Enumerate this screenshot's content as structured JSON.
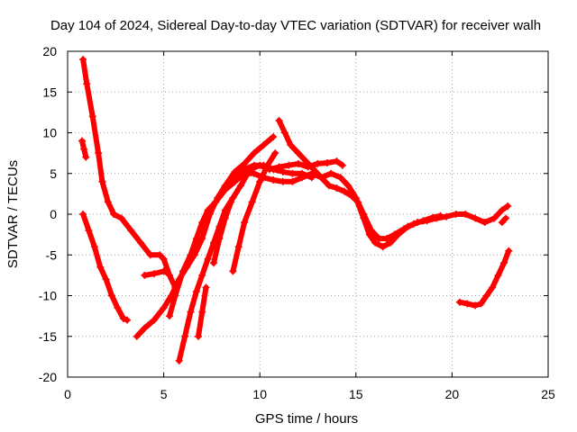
{
  "chart_data": {
    "type": "scatter",
    "title": "Day 104 of 2024, Sidereal Day-to-day VTEC variation (SDTVAR) for receiver walh",
    "xlabel": "GPS time / hours",
    "ylabel": "SDTVAR / TECUs",
    "xlim": [
      0,
      25
    ],
    "ylim": [
      -20,
      20
    ],
    "xticks": [
      0,
      5,
      10,
      15,
      20,
      25
    ],
    "yticks": [
      -20,
      -15,
      -10,
      -5,
      0,
      5,
      10,
      15,
      20
    ],
    "grid": true,
    "marker": "+",
    "color": "#ff0000",
    "series": [
      {
        "name": "s1",
        "points": [
          [
            0.8,
            19
          ],
          [
            1.0,
            16
          ],
          [
            1.3,
            12
          ],
          [
            1.6,
            7.5
          ],
          [
            1.8,
            4
          ],
          [
            2.1,
            1.5
          ],
          [
            2.4,
            0
          ],
          [
            2.8,
            -0.5
          ],
          [
            3.3,
            -2
          ],
          [
            3.8,
            -3.5
          ],
          [
            4.3,
            -5
          ],
          [
            4.8,
            -5
          ],
          [
            5.0,
            -5.5
          ],
          [
            5.3,
            -7.5
          ],
          [
            5.6,
            -9
          ]
        ]
      },
      {
        "name": "s2",
        "points": [
          [
            0.75,
            9
          ],
          [
            0.85,
            8
          ],
          [
            0.95,
            7
          ]
        ]
      },
      {
        "name": "s3",
        "points": [
          [
            0.8,
            0
          ],
          [
            1.1,
            -2
          ],
          [
            1.4,
            -4
          ],
          [
            1.7,
            -6.5
          ],
          [
            2.0,
            -8
          ],
          [
            2.3,
            -10
          ],
          [
            2.6,
            -11.5
          ],
          [
            2.9,
            -12.8
          ],
          [
            3.1,
            -13
          ]
        ]
      },
      {
        "name": "s4",
        "points": [
          [
            3.6,
            -15
          ],
          [
            4.0,
            -14
          ],
          [
            4.5,
            -13
          ],
          [
            5.0,
            -11.5
          ],
          [
            5.4,
            -10
          ],
          [
            5.8,
            -8
          ],
          [
            6.2,
            -6.5
          ],
          [
            6.6,
            -5
          ],
          [
            7.0,
            -3
          ],
          [
            7.4,
            0
          ],
          [
            7.8,
            2
          ],
          [
            8.2,
            3.5
          ],
          [
            8.7,
            4.5
          ],
          [
            9.2,
            5.5
          ],
          [
            9.7,
            6
          ],
          [
            10.2,
            6
          ],
          [
            10.7,
            5.5
          ],
          [
            11.2,
            5.2
          ],
          [
            11.7,
            5
          ],
          [
            12.2,
            5
          ],
          [
            12.7,
            4.5
          ]
        ]
      },
      {
        "name": "s5",
        "points": [
          [
            4.0,
            -7.5
          ],
          [
            4.5,
            -7.3
          ],
          [
            5.0,
            -7
          ],
          [
            5.2,
            -7.2
          ]
        ]
      },
      {
        "name": "s6",
        "points": [
          [
            5.3,
            -12.5
          ],
          [
            5.6,
            -10
          ],
          [
            6.0,
            -7
          ],
          [
            6.4,
            -5
          ],
          [
            6.7,
            -3
          ],
          [
            7.0,
            -1
          ],
          [
            7.3,
            0.5
          ],
          [
            7.7,
            1.5
          ],
          [
            8.2,
            3
          ],
          [
            8.7,
            4
          ],
          [
            9.2,
            5
          ],
          [
            9.7,
            5
          ],
          [
            10.2,
            4.5
          ],
          [
            10.7,
            4.2
          ],
          [
            11.2,
            4
          ],
          [
            11.7,
            4
          ],
          [
            12.2,
            4.5
          ],
          [
            12.7,
            5
          ],
          [
            13.2,
            4.5
          ],
          [
            13.7,
            5
          ],
          [
            14.2,
            4.5
          ],
          [
            14.6,
            3.5
          ],
          [
            15.0,
            2
          ],
          [
            15.4,
            -0.5
          ],
          [
            15.7,
            -2.5
          ],
          [
            16.0,
            -3.5
          ],
          [
            16.4,
            -4
          ],
          [
            16.8,
            -3.5
          ],
          [
            17.2,
            -2.5
          ],
          [
            17.7,
            -1.5
          ],
          [
            18.2,
            -1
          ],
          [
            18.7,
            -0.8
          ],
          [
            19.2,
            -0.5
          ],
          [
            19.7,
            -0.3
          ],
          [
            20.2,
            0
          ],
          [
            20.7,
            0
          ],
          [
            21.2,
            -0.5
          ],
          [
            21.7,
            -1
          ],
          [
            22.2,
            -0.5
          ],
          [
            22.6,
            0.5
          ],
          [
            22.9,
            1
          ]
        ]
      },
      {
        "name": "s7",
        "points": [
          [
            5.8,
            -18
          ],
          [
            6.1,
            -15
          ],
          [
            6.4,
            -12
          ],
          [
            6.7,
            -9.5
          ],
          [
            7.0,
            -7.5
          ],
          [
            7.3,
            -5.5
          ],
          [
            7.6,
            -3.5
          ],
          [
            7.9,
            -1.5
          ],
          [
            8.2,
            0.5
          ],
          [
            8.6,
            2
          ],
          [
            9.0,
            3.5
          ],
          [
            9.5,
            5.5
          ],
          [
            10.0,
            6
          ],
          [
            10.5,
            5.5
          ],
          [
            11.0,
            5.8
          ],
          [
            11.5,
            6
          ],
          [
            12.0,
            6.2
          ],
          [
            12.5,
            5.8
          ],
          [
            13.0,
            6.2
          ],
          [
            13.5,
            6.3
          ],
          [
            14.0,
            6.5
          ],
          [
            14.3,
            6
          ]
        ]
      },
      {
        "name": "s8",
        "points": [
          [
            6.8,
            -15
          ],
          [
            7.0,
            -12
          ],
          [
            7.2,
            -9
          ]
        ]
      },
      {
        "name": "s9",
        "points": [
          [
            7.6,
            -6
          ],
          [
            7.9,
            -3
          ],
          [
            8.2,
            -0.5
          ],
          [
            8.5,
            1.5
          ]
        ]
      },
      {
        "name": "s10",
        "points": [
          [
            8.6,
            -7
          ],
          [
            8.9,
            -4
          ],
          [
            9.2,
            -1
          ],
          [
            9.6,
            1.5
          ],
          [
            10.0,
            4
          ],
          [
            10.4,
            6
          ],
          [
            10.8,
            7.5
          ]
        ]
      },
      {
        "name": "s11",
        "points": [
          [
            7.7,
            1.5
          ],
          [
            8.2,
            3.5
          ],
          [
            8.7,
            5.2
          ],
          [
            9.2,
            6.2
          ],
          [
            9.7,
            7.5
          ],
          [
            10.2,
            8.5
          ],
          [
            10.7,
            9.5
          ]
        ]
      },
      {
        "name": "s12",
        "points": [
          [
            11.0,
            11.5
          ],
          [
            11.3,
            10
          ],
          [
            11.6,
            8.5
          ],
          [
            12.0,
            7.5
          ],
          [
            12.4,
            6.5
          ],
          [
            12.8,
            5.5
          ],
          [
            13.2,
            4.5
          ],
          [
            13.6,
            3.5
          ],
          [
            14.0,
            3.2
          ],
          [
            14.4,
            2.8
          ],
          [
            14.8,
            2.2
          ],
          [
            15.1,
            1.5
          ],
          [
            15.4,
            0
          ],
          [
            15.8,
            -2
          ],
          [
            16.2,
            -3
          ],
          [
            16.6,
            -3
          ],
          [
            17.0,
            -2.5
          ],
          [
            17.5,
            -1.8
          ],
          [
            18.0,
            -1.2
          ],
          [
            18.5,
            -0.8
          ],
          [
            19.0,
            -0.4
          ],
          [
            19.4,
            -0.2
          ]
        ]
      },
      {
        "name": "s13",
        "points": [
          [
            20.4,
            -10.8
          ],
          [
            20.8,
            -11
          ],
          [
            21.2,
            -11.2
          ],
          [
            21.5,
            -11
          ],
          [
            21.8,
            -10
          ],
          [
            22.1,
            -9
          ],
          [
            22.4,
            -7.5
          ],
          [
            22.7,
            -6
          ],
          [
            22.95,
            -4.5
          ]
        ]
      },
      {
        "name": "s14",
        "points": [
          [
            22.6,
            -1
          ],
          [
            22.8,
            -0.5
          ]
        ]
      }
    ]
  }
}
